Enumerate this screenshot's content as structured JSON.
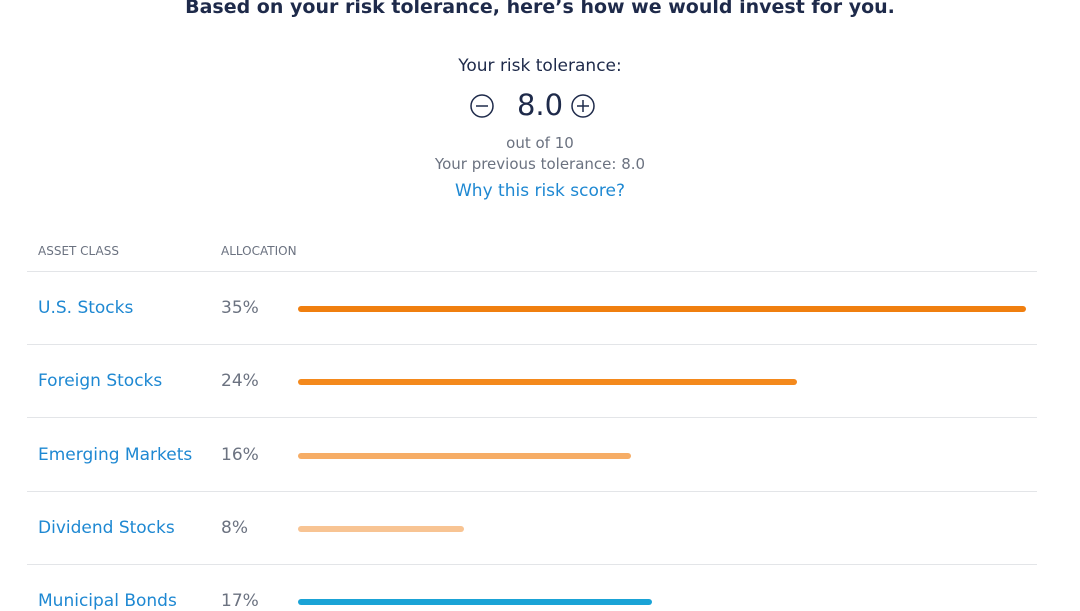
{
  "header": {
    "title": "Based on your risk tolerance, here’s how we would invest for you."
  },
  "risk": {
    "label": "Your risk tolerance:",
    "score": "8.0",
    "scale": "out of 10",
    "previous": "Your previous tolerance: 8.0",
    "link": "Why this risk score?"
  },
  "table": {
    "columns": [
      "ASSET CLASS",
      "ALLOCATION"
    ],
    "rows": [
      {
        "name": "U.S. Stocks",
        "value": 35,
        "value_label": "35%",
        "color": "#f07f0f"
      },
      {
        "name": "Foreign Stocks",
        "value": 24,
        "value_label": "24%",
        "color": "#f4891c"
      },
      {
        "name": "Emerging Markets",
        "value": 16,
        "value_label": "16%",
        "color": "#f6ad66"
      },
      {
        "name": "Dividend Stocks",
        "value": 8,
        "value_label": "8%",
        "color": "#f8c493"
      },
      {
        "name": "Municipal Bonds",
        "value": 17,
        "value_label": "17%",
        "color": "#1aa3d6"
      }
    ]
  }
}
